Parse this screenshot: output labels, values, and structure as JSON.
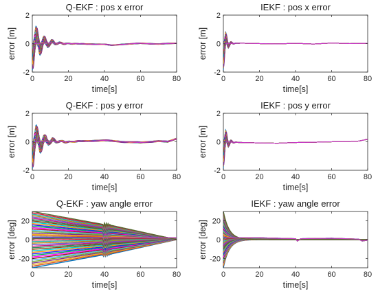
{
  "chart_data": [
    {
      "type": "line",
      "title": "Q-EKF : pos x error",
      "xlabel": "time[s]",
      "ylabel": "error [m]",
      "xlim": [
        0,
        80
      ],
      "ylim": [
        -2,
        2
      ],
      "xticks": [
        0,
        20,
        40,
        60,
        80
      ],
      "yticks": [
        -2,
        0,
        2
      ],
      "grid": false,
      "envelope": {
        "a0": 1.9,
        "tau": 5,
        "freq": 0.23,
        "floor": 0.03,
        "spread": 0.7
      },
      "series": [
        {
          "x": [
            0,
            10,
            20,
            30,
            40,
            44,
            50,
            60,
            70,
            80
          ],
          "y": [
            0,
            0.05,
            0,
            -0.03,
            -0.05,
            -0.12,
            -0.05,
            0.02,
            -0.03,
            0.03
          ]
        }
      ]
    },
    {
      "type": "line",
      "title": "IEKF : pos x error",
      "xlabel": "time[s]",
      "ylabel": "error [m]",
      "xlim": [
        0,
        80
      ],
      "ylim": [
        -2,
        2
      ],
      "xticks": [
        0,
        20,
        40,
        60,
        80
      ],
      "yticks": [
        -2,
        0,
        2
      ],
      "grid": false,
      "envelope": {
        "a0": 1.9,
        "tau": 1.6,
        "freq": 0.35,
        "floor": 0.0,
        "spread": 0.5
      },
      "series": [
        {
          "x": [
            0,
            10,
            20,
            30,
            40,
            50,
            60,
            70,
            80
          ],
          "y": [
            0,
            0.03,
            0,
            -0.02,
            0.02,
            -0.03,
            0.04,
            0,
            0.02
          ]
        }
      ]
    },
    {
      "type": "line",
      "title": "Q-EKF : pos y error",
      "xlabel": "time[s]",
      "ylabel": "error [m]",
      "xlim": [
        0,
        80
      ],
      "ylim": [
        -2,
        2
      ],
      "xticks": [
        0,
        20,
        40,
        60,
        80
      ],
      "yticks": [
        -2,
        0,
        2
      ],
      "grid": false,
      "envelope": {
        "a0": 1.9,
        "tau": 5,
        "freq": 0.22,
        "floor": 0.05,
        "spread": 0.7
      },
      "series": [
        {
          "x": [
            0,
            10,
            20,
            30,
            40,
            50,
            60,
            70,
            75,
            80
          ],
          "y": [
            0,
            0.05,
            0,
            0.05,
            0.1,
            0.0,
            -0.05,
            0.05,
            0.0,
            0.22
          ]
        }
      ]
    },
    {
      "type": "line",
      "title": "IEKF : pos y error",
      "xlabel": "time[s]",
      "ylabel": "error [m]",
      "xlim": [
        0,
        80
      ],
      "ylim": [
        -2,
        2
      ],
      "xticks": [
        0,
        20,
        40,
        60,
        80
      ],
      "yticks": [
        -2,
        0,
        2
      ],
      "grid": false,
      "envelope": {
        "a0": 1.9,
        "tau": 1.7,
        "freq": 0.35,
        "floor": 0.0,
        "spread": 0.5
      },
      "series": [
        {
          "x": [
            0,
            10,
            20,
            30,
            40,
            50,
            60,
            70,
            75,
            80
          ],
          "y": [
            0,
            -0.05,
            -0.08,
            -0.1,
            -0.05,
            -0.03,
            0.0,
            0.02,
            0.05,
            0.18
          ]
        }
      ]
    },
    {
      "type": "area",
      "title": "Q-EKF : yaw angle error",
      "xlabel": "time[s]",
      "ylabel": "error [deg]",
      "xlim": [
        0,
        80
      ],
      "ylim": [
        -30,
        30
      ],
      "xticks": [
        0,
        20,
        40,
        60,
        80
      ],
      "yticks": [
        -20,
        0,
        20
      ],
      "grid": false,
      "fan": {
        "start": 30,
        "knots_x": [
          0,
          40,
          42,
          80
        ],
        "knots_a": [
          30,
          16,
          16,
          0
        ],
        "offset": 2
      },
      "series": [
        {
          "x": [
            0,
            40,
            80
          ],
          "y": [
            2,
            2,
            2
          ]
        }
      ]
    },
    {
      "type": "area",
      "title": "IEKF : yaw angle error",
      "xlabel": "time[s]",
      "ylabel": "error [deg]",
      "xlim": [
        0,
        80
      ],
      "ylim": [
        -30,
        30
      ],
      "xticks": [
        0,
        20,
        40,
        60,
        80
      ],
      "yticks": [
        -20,
        0,
        20
      ],
      "grid": false,
      "fan": {
        "start": 30,
        "tau": 3.2,
        "offset": 2
      },
      "series": [
        {
          "x": [
            0,
            20,
            40,
            41,
            43,
            60,
            75,
            77,
            80
          ],
          "y": [
            2,
            2,
            1,
            -1.5,
            1,
            1.5,
            0.5,
            -1.5,
            -0.5
          ]
        }
      ]
    }
  ]
}
